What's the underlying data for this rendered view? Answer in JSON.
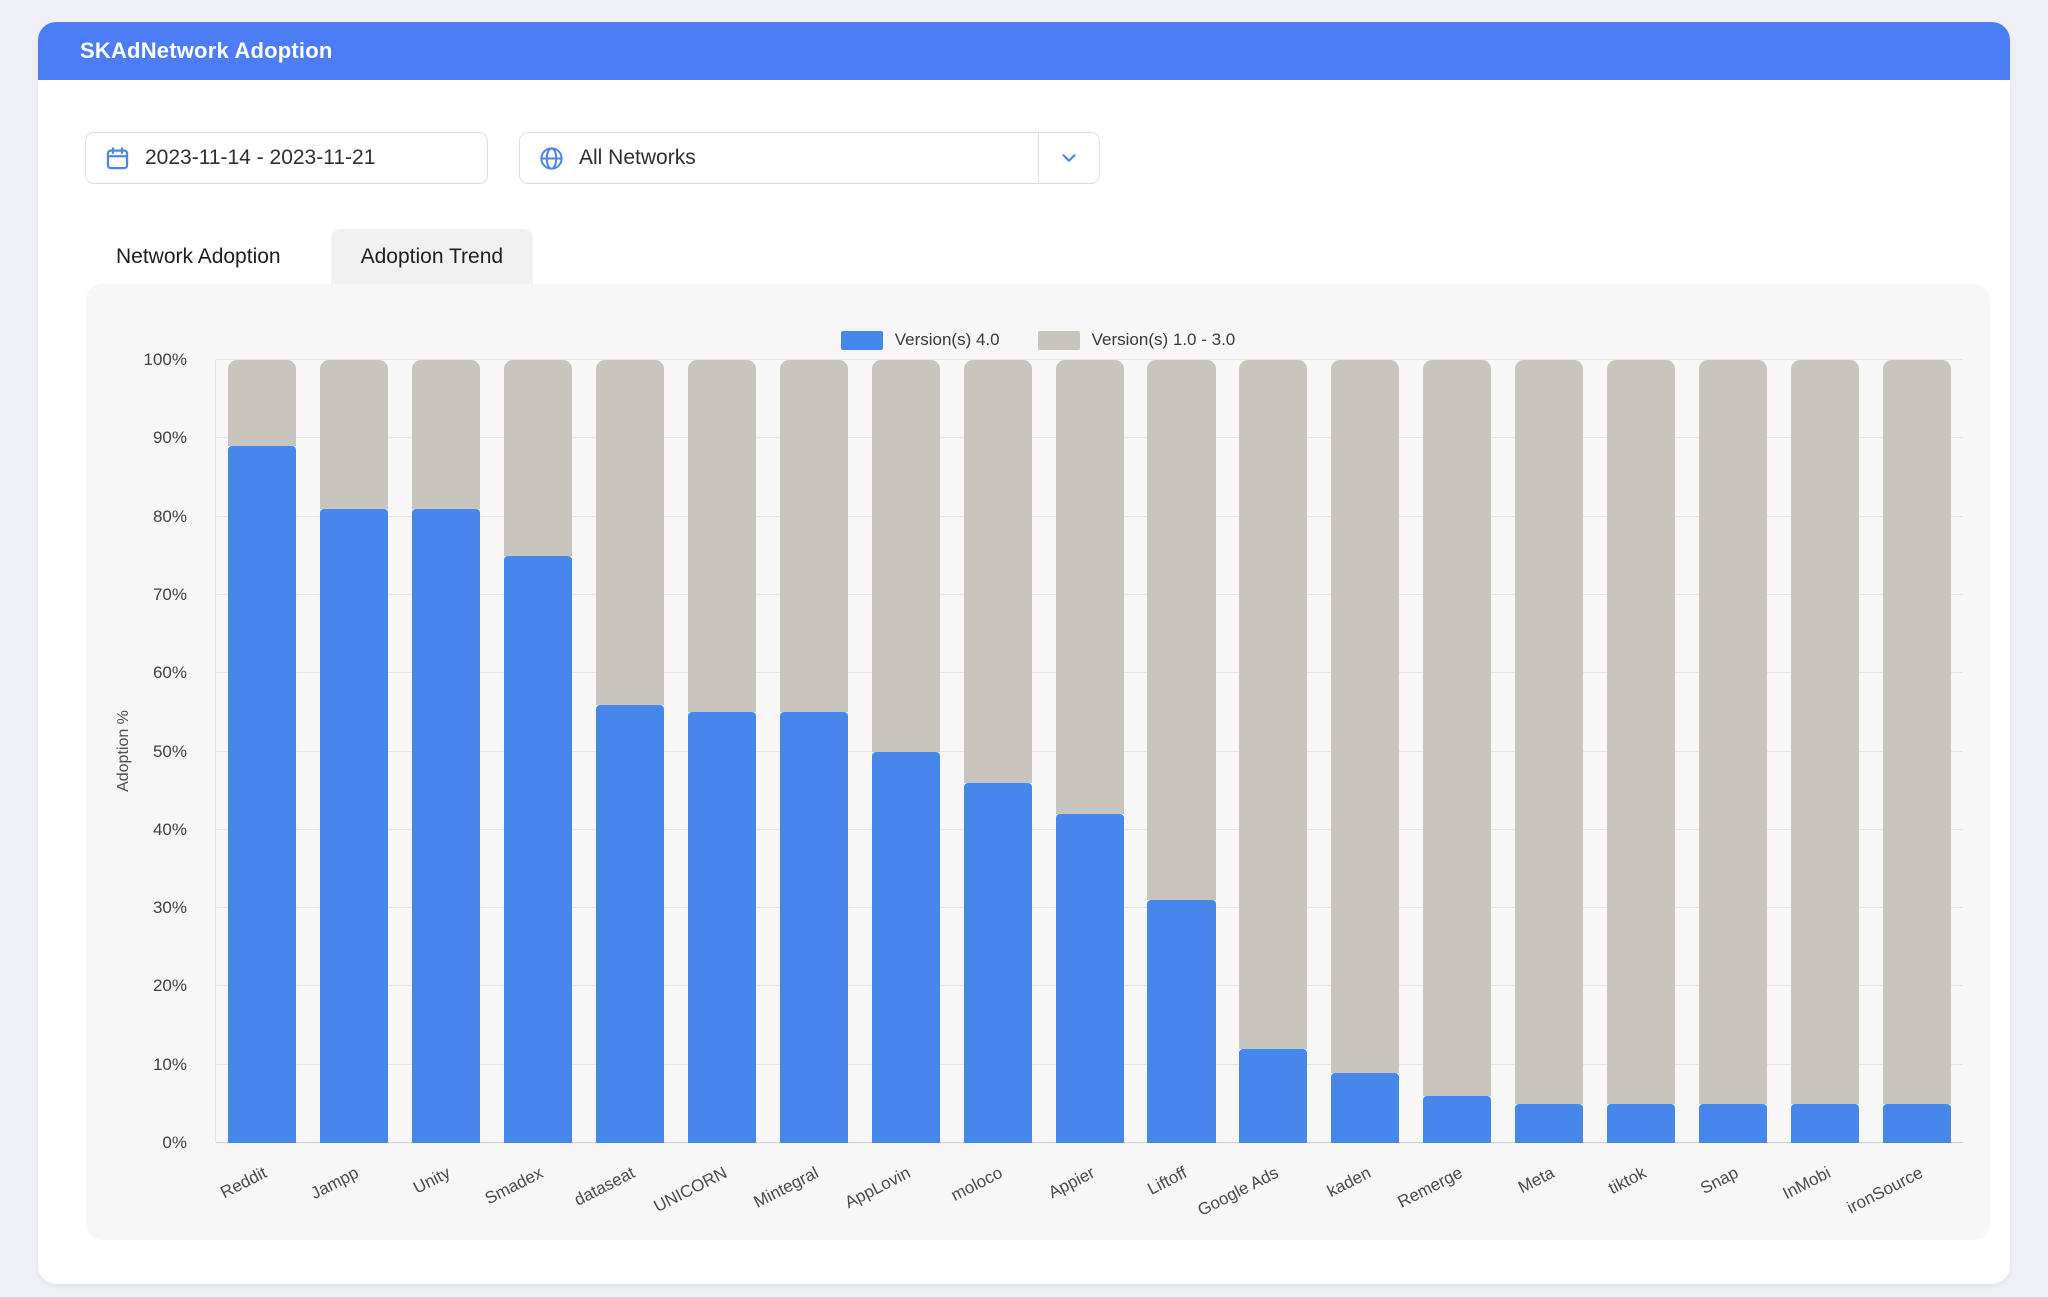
{
  "header": {
    "title": "SKAdNetwork Adoption"
  },
  "controls": {
    "date_range": {
      "value": "2023-11-14 - 2023-11-21"
    },
    "network_filter": {
      "value": "All Networks"
    }
  },
  "tabs": [
    {
      "label": "Network Adoption",
      "active": true
    },
    {
      "label": "Adoption Trend",
      "active": false
    }
  ],
  "colors": {
    "header_bg": "#4c7df6",
    "accent_blue": "#4a86ee",
    "bar_blue": "#4687ec",
    "bar_gray": "#c8c6bc",
    "panel_bg": "#f7f7f8",
    "page_bg": "#eef0f5"
  },
  "chart_data": {
    "type": "bar",
    "stacked": true,
    "title": "",
    "xlabel": "",
    "ylabel": "Adoption %",
    "ylim": [
      0,
      100
    ],
    "ytick_step": 10,
    "grid": true,
    "legend_position": "top-center",
    "categories": [
      "Reddit",
      "Jampp",
      "Unity",
      "Smadex",
      "dataseat",
      "UNICORN",
      "Mintegral",
      "AppLovin",
      "moloco",
      "Appier",
      "Liftoff",
      "Google Ads",
      "kaden",
      "Remerge",
      "Meta",
      "tiktok",
      "Snap",
      "InMobi",
      "ironSource"
    ],
    "series": [
      {
        "name": "Version(s) 4.0",
        "color": "#4687ec",
        "values": [
          89,
          81,
          81,
          75,
          56,
          55,
          55,
          50,
          46,
          42,
          31,
          12,
          9,
          6,
          5,
          5,
          5,
          5,
          5
        ]
      },
      {
        "name": "Version(s) 1.0 - 3.0",
        "color": "#c8c6bc",
        "values": [
          11,
          19,
          19,
          25,
          44,
          45,
          45,
          50,
          54,
          58,
          69,
          88,
          91,
          94,
          95,
          95,
          95,
          95,
          95
        ]
      }
    ]
  }
}
